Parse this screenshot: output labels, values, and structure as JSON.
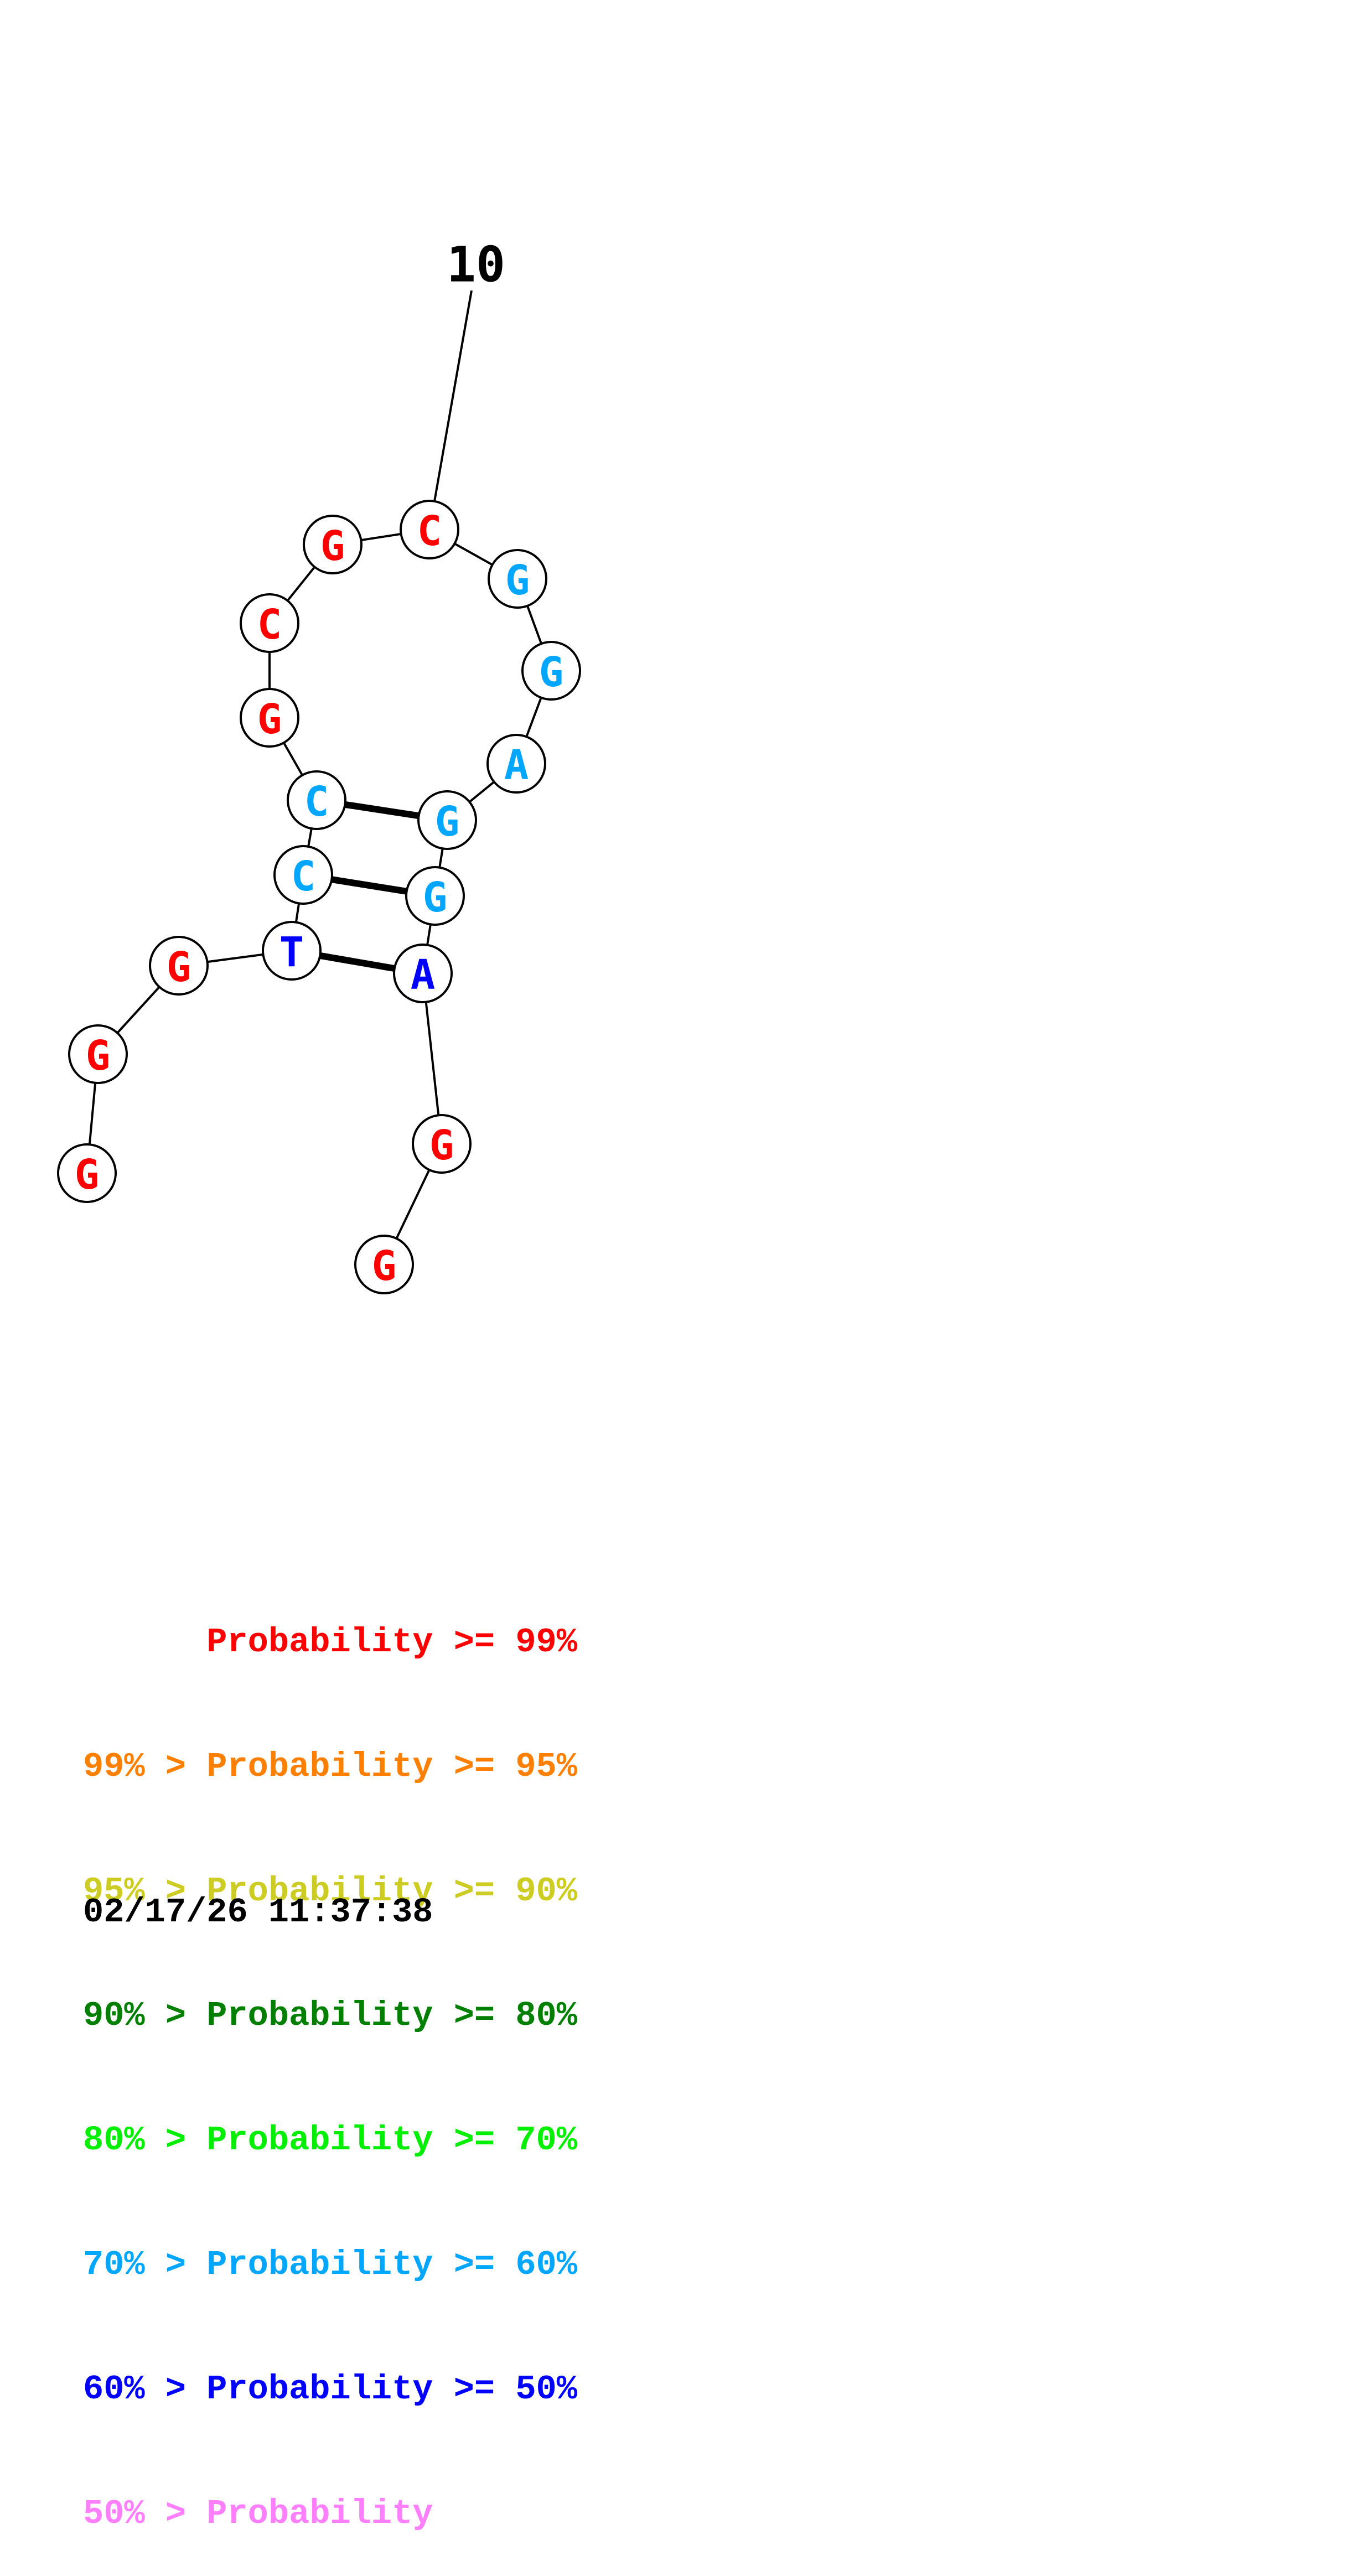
{
  "diagram": {
    "type": "rna-secondary-structure",
    "position_label": "10",
    "nucleotides": [
      {
        "base": "G",
        "color": "#ff0000"
      },
      {
        "base": "G",
        "color": "#ff0000"
      },
      {
        "base": "G",
        "color": "#ff0000"
      },
      {
        "base": "T",
        "color": "#0000ff"
      },
      {
        "base": "C",
        "color": "#00a6ff"
      },
      {
        "base": "C",
        "color": "#00a6ff"
      },
      {
        "base": "G",
        "color": "#ff0000"
      },
      {
        "base": "C",
        "color": "#ff0000"
      },
      {
        "base": "G",
        "color": "#ff0000"
      },
      {
        "base": "C",
        "color": "#ff0000"
      },
      {
        "base": "G",
        "color": "#00a6ff"
      },
      {
        "base": "G",
        "color": "#00a6ff"
      },
      {
        "base": "A",
        "color": "#00a6ff"
      },
      {
        "base": "G",
        "color": "#00a6ff"
      },
      {
        "base": "G",
        "color": "#00a6ff"
      },
      {
        "base": "A",
        "color": "#0000ff"
      },
      {
        "base": "G",
        "color": "#ff0000"
      },
      {
        "base": "G",
        "color": "#ff0000"
      }
    ],
    "base_pairs": [
      [
        4,
        16
      ],
      [
        5,
        15
      ],
      [
        6,
        14
      ]
    ],
    "numbered_position": 10
  },
  "legend": [
    {
      "text": "      Probability >= 99%",
      "color": "#ff0000"
    },
    {
      "text": "99% > Probability >= 95%",
      "color": "#ff7f00"
    },
    {
      "text": "95% > Probability >= 90%",
      "color": "#cccc22"
    },
    {
      "text": "90% > Probability >= 80%",
      "color": "#007f00"
    },
    {
      "text": "80% > Probability >= 70%",
      "color": "#00ee00"
    },
    {
      "text": "70% > Probability >= 60%",
      "color": "#00a6ff"
    },
    {
      "text": "60% > Probability >= 50%",
      "color": "#0000ff"
    },
    {
      "text": "50% > Probability",
      "color": "#ff7fff"
    }
  ],
  "timestamp": "02/17/26 11:37:38"
}
